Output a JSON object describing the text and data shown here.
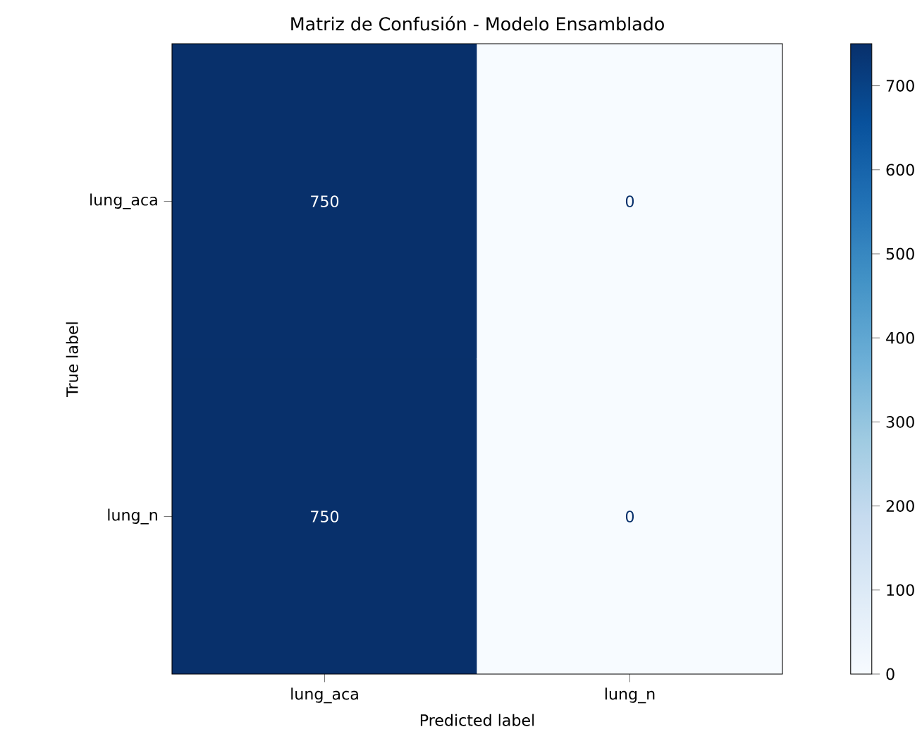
{
  "chart_data": {
    "type": "heatmap",
    "title": "Matriz de Confusión - Modelo Ensamblado",
    "xlabel": "Predicted label",
    "ylabel": "True label",
    "categories": [
      "lung_aca",
      "lung_n"
    ],
    "y_categories": [
      "lung_aca",
      "lung_n"
    ],
    "cells": [
      [
        750,
        0
      ],
      [
        750,
        0
      ]
    ],
    "data_labels": true,
    "clim": [
      0,
      750
    ],
    "cticks": [
      0,
      100,
      200,
      300,
      400,
      500,
      600,
      700
    ]
  }
}
